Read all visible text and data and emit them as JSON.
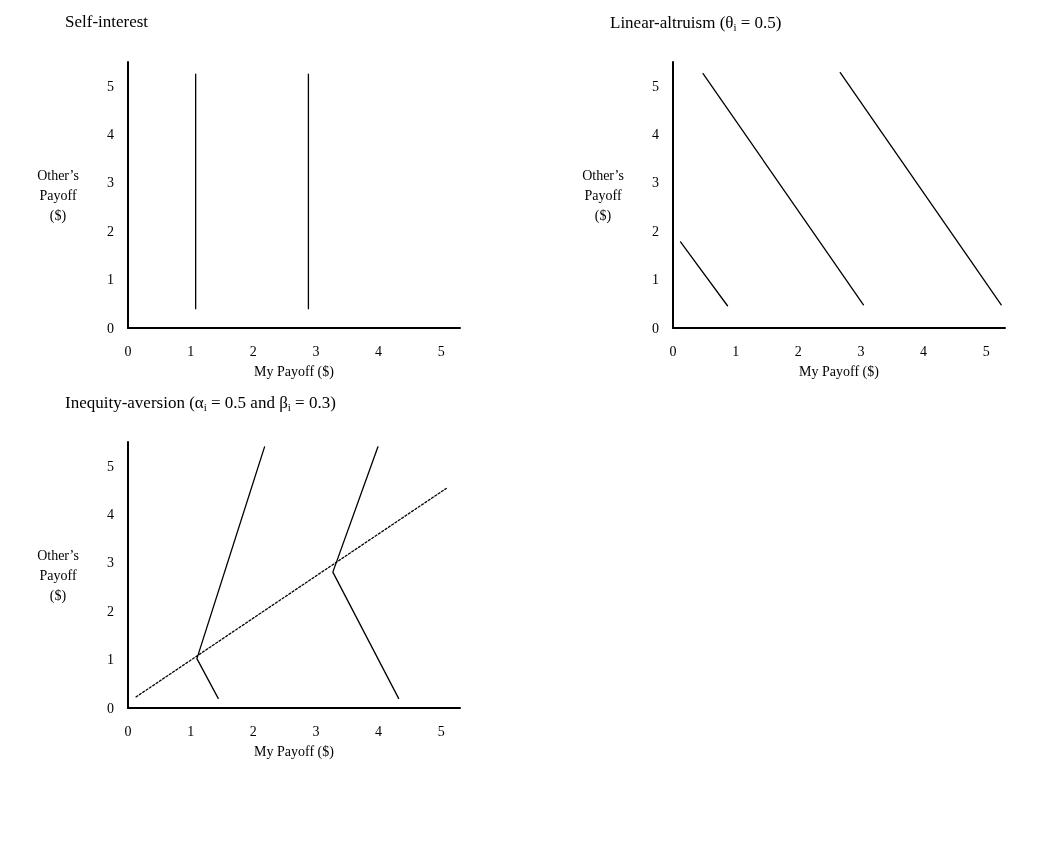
{
  "chart_data": [
    {
      "type": "line",
      "title": "Self-interest",
      "xlabel": "My Payoff ($)",
      "ylabel": "Other’s Payoff ($)",
      "xlim": [
        0,
        5.3
      ],
      "ylim": [
        0,
        5.5
      ],
      "xticks": [
        0,
        1,
        2,
        3,
        4,
        5
      ],
      "yticks": [
        0,
        1,
        2,
        3,
        4,
        5
      ],
      "grid": false,
      "marker": "none",
      "series": [
        {
          "color": "#000000",
          "line_style": "solid",
          "x": [
            1.08,
            1.08
          ],
          "values": [
            0.4,
            5.25
          ]
        },
        {
          "color": "#000000",
          "line_style": "solid",
          "x": [
            2.88,
            2.88
          ],
          "values": [
            0.4,
            5.25
          ]
        }
      ]
    },
    {
      "type": "line",
      "title": "Linear-altruism (θ$_{i}$ = 0.5)",
      "xlabel": "My Payoff ($)",
      "ylabel": "Other’s Payoff ($)",
      "xlim": [
        0,
        5.3
      ],
      "ylim": [
        0,
        5.5
      ],
      "xticks": [
        0,
        1,
        2,
        3,
        4,
        5
      ],
      "yticks": [
        0,
        1,
        2,
        3,
        4,
        5
      ],
      "grid": false,
      "marker": "none",
      "series": [
        {
          "color": "#000000",
          "line_style": "solid",
          "x": [
            0.12,
            0.87
          ],
          "values": [
            1.78,
            0.46
          ]
        },
        {
          "color": "#000000",
          "line_style": "solid",
          "x": [
            0.48,
            3.04
          ],
          "values": [
            5.26,
            0.48
          ]
        },
        {
          "color": "#000000",
          "line_style": "solid",
          "x": [
            2.67,
            5.24
          ],
          "values": [
            5.28,
            0.48
          ]
        }
      ]
    },
    {
      "type": "line",
      "title": "Inequity-aversion (α$_{i}$ = 0.5 and β$_{i}$ = 0.3)",
      "xlabel": "My Payoff ($)",
      "ylabel": "Other’s Payoff ($)",
      "xlim": [
        0,
        5.3
      ],
      "ylim": [
        0,
        5.5
      ],
      "xticks": [
        0,
        1,
        2,
        3,
        4,
        5
      ],
      "yticks": [
        0,
        1,
        2,
        3,
        4,
        5
      ],
      "grid": false,
      "marker": "none",
      "series": [
        {
          "color": "#000000",
          "line_style": "solid",
          "x": [
            2.18,
            1.1,
            1.44
          ],
          "values": [
            5.4,
            1.02,
            0.2
          ]
        },
        {
          "color": "#000000",
          "line_style": "solid",
          "x": [
            3.99,
            3.27,
            4.32
          ],
          "values": [
            5.4,
            2.81,
            0.2
          ]
        },
        {
          "color": "#000000",
          "line_style": "dotted",
          "x": [
            0.13,
            5.08
          ],
          "values": [
            0.23,
            4.54
          ]
        }
      ]
    }
  ]
}
